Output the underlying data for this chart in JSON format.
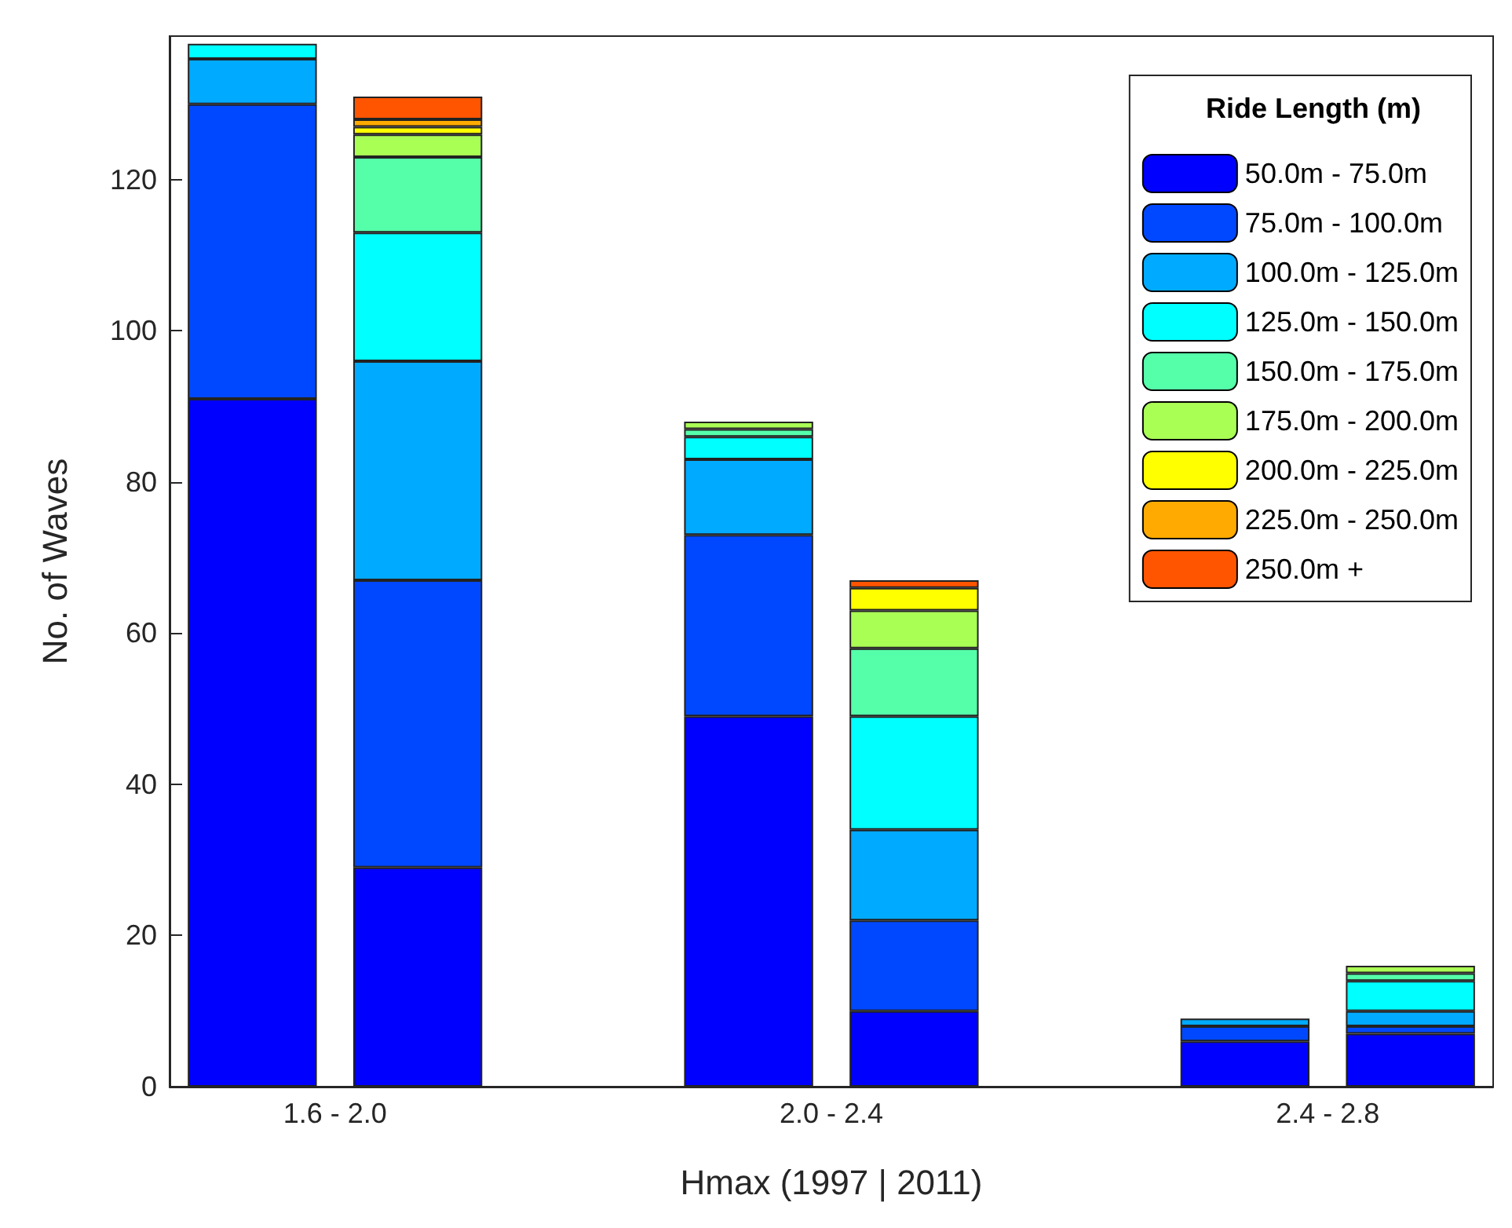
{
  "chart_data": {
    "type": "bar",
    "stacked": true,
    "xlabel": "Hmax (1997 | 2011)",
    "ylabel": "No. of Waves",
    "legend_title": "Ride Length (m)",
    "legend": "top right",
    "grid": false,
    "categories": [
      "1.6 - 2.0",
      null,
      null,
      "2.0 - 2.4",
      null,
      null,
      "2.4 - 2.8",
      null
    ],
    "ylim": [
      0,
      139
    ],
    "yticks": [
      0,
      20,
      40,
      60,
      80,
      100,
      120
    ],
    "series": [
      {
        "name": "50.0m - 75.0m",
        "color": "#0000ff",
        "values": [
          91,
          29,
          null,
          49,
          10,
          null,
          6,
          7
        ]
      },
      {
        "name": "75.0m - 100.0m",
        "color": "#0048ff",
        "values": [
          39,
          38,
          null,
          24,
          12,
          null,
          2,
          1
        ]
      },
      {
        "name": "100.0m - 125.0m",
        "color": "#00aaff",
        "values": [
          6,
          29,
          null,
          10,
          12,
          null,
          1,
          2
        ]
      },
      {
        "name": "125.0m - 150.0m",
        "color": "#00ffff",
        "values": [
          2,
          17,
          null,
          3,
          15,
          null,
          null,
          4
        ]
      },
      {
        "name": "150.0m - 175.0m",
        "color": "#55ffaa",
        "values": [
          null,
          10,
          null,
          1,
          9,
          null,
          null,
          1
        ]
      },
      {
        "name": "175.0m - 200.0m",
        "color": "#aaff55",
        "values": [
          null,
          3,
          null,
          1,
          5,
          null,
          null,
          1
        ]
      },
      {
        "name": "200.0m - 225.0m",
        "color": "#ffff00",
        "values": [
          null,
          1,
          null,
          null,
          3,
          null,
          null,
          null
        ]
      },
      {
        "name": "225.0m - 250.0m",
        "color": "#ffaa00",
        "values": [
          null,
          1,
          null,
          null,
          null,
          null,
          null,
          null
        ]
      },
      {
        "name": "250.0m +",
        "color": "#ff5500",
        "values": [
          null,
          3,
          null,
          null,
          1,
          null,
          null,
          null
        ]
      }
    ]
  }
}
